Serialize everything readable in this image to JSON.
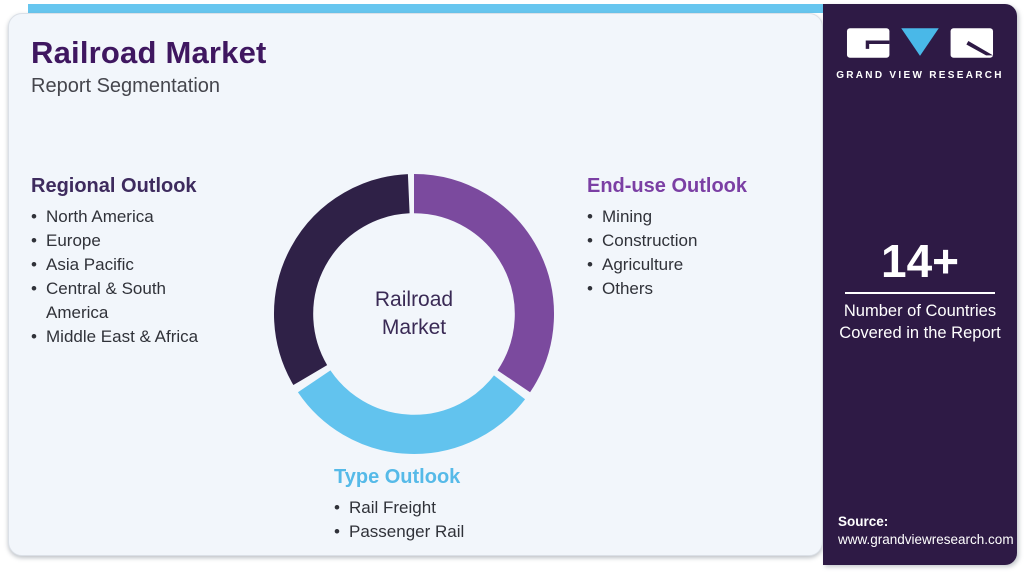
{
  "header": {
    "title": "Railroad Market",
    "subtitle": "Report Segmentation"
  },
  "sections": {
    "regional": {
      "heading": "Regional Outlook",
      "items": [
        "North America",
        "Europe",
        "Asia Pacific",
        "Central & South America",
        "Middle East & Africa"
      ]
    },
    "end_use": {
      "heading": "End-use Outlook",
      "items": [
        "Mining",
        "Construction",
        "Agriculture",
        "Others"
      ]
    },
    "type": {
      "heading": "Type Outlook",
      "items": [
        "Rail Freight",
        "Passenger Rail"
      ]
    }
  },
  "chart_data": {
    "type": "pie",
    "subtype": "donut",
    "title": "Railroad Market segmentation donut",
    "center_label_lines": [
      "Railroad",
      "Market"
    ],
    "inner_radius_ratio": 0.72,
    "segments": [
      {
        "id": "end-use",
        "label": "End-use Outlook",
        "color": "#7b4a9e",
        "start_deg": 0,
        "end_deg": 124,
        "share_pct": 34.4
      },
      {
        "id": "type",
        "label": "Type Outlook",
        "color": "#62c3ee",
        "start_deg": 127.5,
        "end_deg": 236,
        "share_pct": 30.1
      },
      {
        "id": "regional",
        "label": "Regional Outlook",
        "color": "#2f2147",
        "start_deg": 239.5,
        "end_deg": 357.5,
        "share_pct": 32.8
      }
    ]
  },
  "sidebar": {
    "brand_text": "GRAND VIEW RESEARCH",
    "stat_value": "14+",
    "stat_label": "Number of Countries Covered in the Report",
    "source_label": "Source:",
    "source_url": "www.grandviewresearch.com"
  },
  "colors": {
    "accent_bar": "#67c6ef",
    "card_bg": "#f2f6fb",
    "sidebar_bg": "#2e1a45",
    "title": "#3f1760",
    "heading_regional": "#3e2b5e",
    "heading_end_use": "#7b3fa4",
    "heading_type": "#56bae8",
    "donut_dark": "#2f2147",
    "donut_purple": "#7b4a9e",
    "donut_blue": "#62c3ee"
  }
}
